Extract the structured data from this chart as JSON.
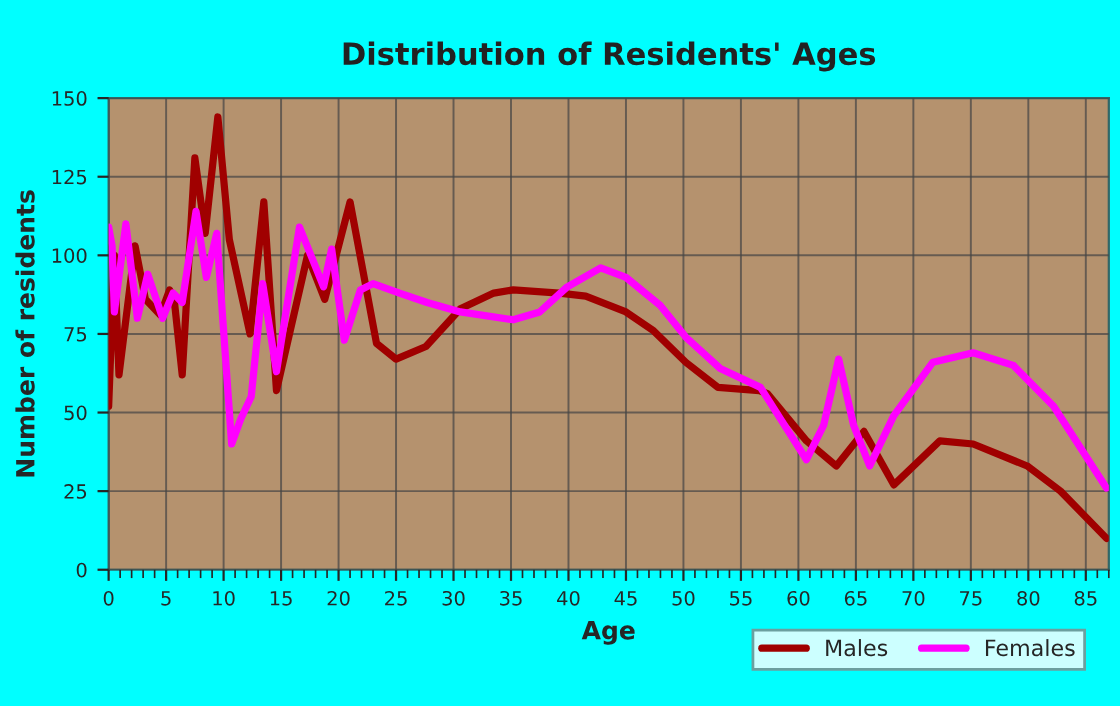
{
  "chart_data": {
    "type": "line",
    "title": "Distribution of Residents' Ages",
    "xlabel": "Age",
    "ylabel": "Number of residents",
    "xlim": [
      0,
      87
    ],
    "xticks": [
      0,
      5,
      10,
      15,
      20,
      25,
      30,
      35,
      40,
      45,
      50,
      55,
      60,
      65,
      70,
      75,
      80,
      85
    ],
    "ylim": [
      0,
      150
    ],
    "yticks": [
      0,
      25,
      50,
      75,
      100,
      125,
      150
    ],
    "grid": true,
    "legend": "bottom",
    "line_style": "solid",
    "marker": "none",
    "series": [
      {
        "name": "Males",
        "color": "#a00000",
        "x": [
          0,
          0.5,
          0.9,
          2.3,
          3.2,
          4.5,
          5.3,
          5.7,
          6.4,
          7.5,
          8.4,
          9.5,
          10.5,
          12.3,
          13.5,
          14.6,
          17.3,
          18.8,
          21,
          23.3,
          25,
          27.6,
          30.6,
          33.5,
          35.2,
          39.2,
          41.5,
          45,
          47.4,
          50.2,
          53,
          56.6,
          57.3,
          60.7,
          63.3,
          65.7,
          68.3,
          72.3,
          75.2,
          79.9,
          82.8,
          86.8
        ],
        "values": [
          52,
          100,
          62,
          103,
          86,
          81,
          89,
          86,
          62,
          131,
          107,
          144,
          105,
          75,
          117,
          57,
          100,
          86,
          117,
          72,
          67,
          71,
          83,
          88,
          89,
          88,
          87,
          82,
          76,
          66,
          58,
          57,
          56,
          41,
          33,
          44,
          27,
          41,
          40,
          33,
          25,
          10
        ]
      },
      {
        "name": "Females",
        "color": "#ff00ff",
        "x": [
          0,
          0.3,
          0.5,
          1.5,
          2.5,
          3.4,
          4.7,
          5.6,
          6.4,
          7.6,
          8.5,
          9.4,
          10.7,
          11.5,
          12.4,
          13.4,
          14.6,
          16.6,
          18.7,
          19.4,
          20.5,
          21.9,
          23,
          25.3,
          27.7,
          30.6,
          35.2,
          37.5,
          39.9,
          42.8,
          45,
          48,
          50.2,
          53.2,
          56.7,
          60.7,
          62.2,
          63.5,
          64.8,
          66.2,
          68.3,
          71.7,
          75.2,
          78.7,
          82.2,
          86.8
        ],
        "values": [
          109,
          103,
          82,
          110,
          80,
          94,
          80,
          88,
          85,
          114,
          93,
          107,
          40,
          48,
          55,
          91,
          63,
          109,
          90,
          102,
          73,
          89,
          91,
          88,
          85,
          82,
          79.5,
          82,
          90,
          96,
          93,
          84,
          74,
          64,
          58,
          35,
          46,
          67,
          46,
          33,
          49,
          66,
          69,
          65,
          52,
          26
        ]
      }
    ]
  }
}
